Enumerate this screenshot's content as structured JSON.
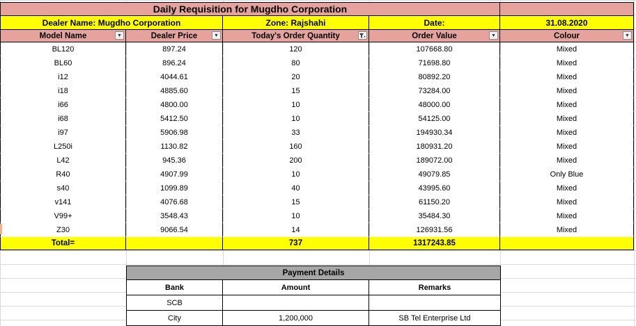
{
  "title": "Daily Requisition for Mugdho Corporation",
  "info_row": {
    "dealer": "Dealer Name:  Mugdho Corporation",
    "zone": "Zone: Rajshahi",
    "date_label": "Date:",
    "date_value": "31.08.2020"
  },
  "columns": [
    "Model Name",
    "Dealer Price",
    "Today's Order Quantity",
    "Order Value",
    "Colour"
  ],
  "rows": [
    {
      "model": "BL120",
      "price": "897.24",
      "qty": "120",
      "value": "107668.80",
      "colour": "Mixed"
    },
    {
      "model": "BL60",
      "price": "896.24",
      "qty": "80",
      "value": "71698.80",
      "colour": "Mixed"
    },
    {
      "model": "i12",
      "price": "4044.61",
      "qty": "20",
      "value": "80892.20",
      "colour": "Mixed"
    },
    {
      "model": "i18",
      "price": "4885.60",
      "qty": "15",
      "value": "73284.00",
      "colour": "Mixed"
    },
    {
      "model": "i66",
      "price": "4800.00",
      "qty": "10",
      "value": "48000.00",
      "colour": "Mixed"
    },
    {
      "model": "i68",
      "price": "5412.50",
      "qty": "10",
      "value": "54125.00",
      "colour": "Mixed"
    },
    {
      "model": "i97",
      "price": "5906.98",
      "qty": "33",
      "value": "194930.34",
      "colour": "Mixed"
    },
    {
      "model": "L250i",
      "price": "1130.82",
      "qty": "160",
      "value": "180931.20",
      "colour": "Mixed"
    },
    {
      "model": "L42",
      "price": "945.36",
      "qty": "200",
      "value": "189072.00",
      "colour": "Mixed"
    },
    {
      "model": "R40",
      "price": "4907.99",
      "qty": "10",
      "value": "49079.85",
      "colour": "Only Blue"
    },
    {
      "model": "s40",
      "price": "1099.89",
      "qty": "40",
      "value": "43995.60",
      "colour": "Mixed"
    },
    {
      "model": "v141",
      "price": "4076.68",
      "qty": "15",
      "value": "61150.20",
      "colour": "Mixed"
    },
    {
      "model": "V99+",
      "price": "3548.43",
      "qty": "10",
      "value": "35484.30",
      "colour": "Mixed"
    },
    {
      "model": "Z30",
      "price": "9066.54",
      "qty": "14",
      "value": "126931.56",
      "colour": "Mixed"
    }
  ],
  "total": {
    "label": "Total=",
    "qty": "737",
    "value": "1317243.85"
  },
  "payment": {
    "title": "Payment Details",
    "headers": [
      "Bank",
      "Amount",
      "Remarks"
    ],
    "rows": [
      {
        "bank": "SCB",
        "amount": "",
        "remarks": ""
      },
      {
        "bank": "City",
        "amount": "1,200,000",
        "remarks": "SB Tel Enterprise Ltd"
      }
    ]
  },
  "icons": {
    "dropdown": "dropdown-arrow-icon",
    "filter": "filter-icon"
  },
  "colors": {
    "title_bg": "#e6a29c",
    "highlight": "#ffff00",
    "payment_title_bg": "#a6a6a6"
  }
}
